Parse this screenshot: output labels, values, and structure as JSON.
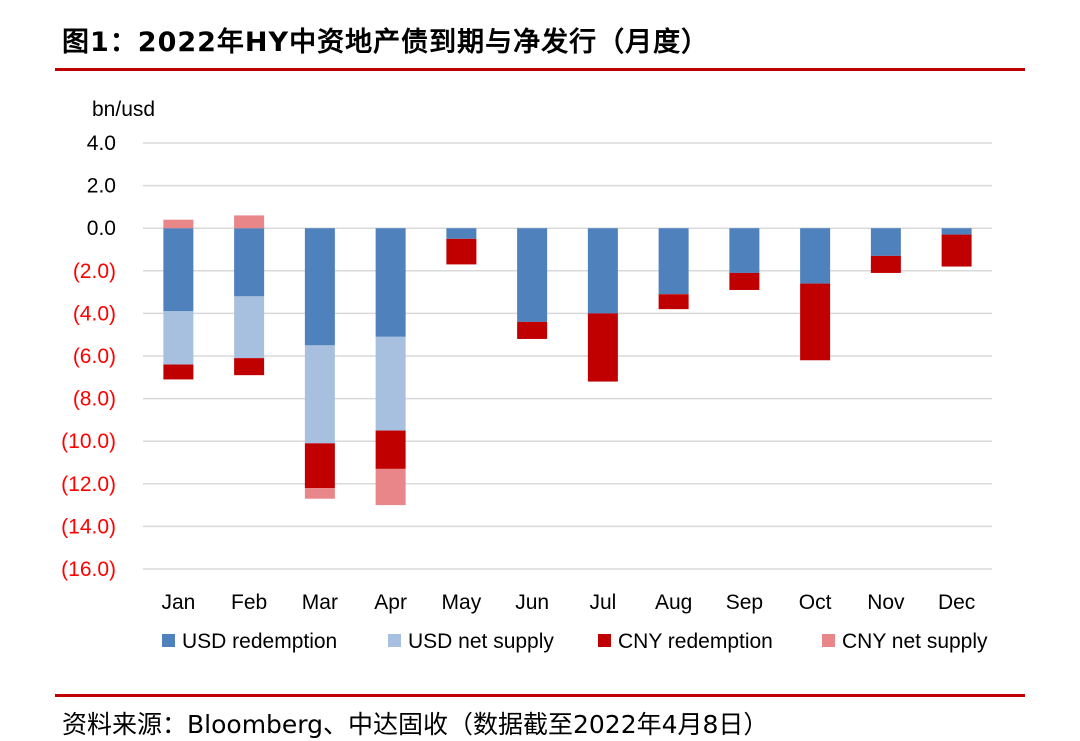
{
  "title": "图1：2022年HY中资地产债到期与净发行（月度）",
  "source": "资料来源：Bloomberg、中达固收（数据截至2022年4月8日）",
  "colors": {
    "usd_redemption": "#4f81bd",
    "usd_net_supply": "#a7c0df",
    "cny_redemption": "#c00000",
    "cny_net_supply": "#e8868a",
    "negative_tick": "#ff0000",
    "positive_tick": "#000000",
    "grid": "#d9d9d9",
    "rule": "#c00000"
  },
  "chart_data": {
    "type": "bar",
    "stacked": true,
    "ylabel": "bn/usd",
    "ylim": [
      -16,
      4
    ],
    "y_ticks": [
      4,
      2,
      0,
      -2,
      -4,
      -6,
      -8,
      -10,
      -12,
      -14,
      -16
    ],
    "y_tick_labels": [
      "4.0",
      "2.0",
      "0.0",
      "(2.0)",
      "(4.0)",
      "(6.0)",
      "(8.0)",
      "(10.0)",
      "(12.0)",
      "(14.0)",
      "(16.0)"
    ],
    "grid": true,
    "legend_position": "bottom",
    "categories": [
      "Jan",
      "Feb",
      "Mar",
      "Apr",
      "May",
      "Jun",
      "Jul",
      "Aug",
      "Sep",
      "Oct",
      "Nov",
      "Dec"
    ],
    "series": [
      {
        "name": "USD redemption",
        "color_key": "usd_redemption",
        "values": [
          -3.9,
          -3.2,
          -5.5,
          -5.1,
          -0.5,
          -4.4,
          -4.0,
          -3.1,
          -2.1,
          -2.6,
          -1.3,
          -0.3
        ]
      },
      {
        "name": "USD net supply",
        "color_key": "usd_net_supply",
        "values": [
          -2.5,
          -2.9,
          -4.6,
          -4.4,
          0,
          0,
          0,
          0,
          0,
          0,
          0,
          0
        ]
      },
      {
        "name": "CNY redemption",
        "color_key": "cny_redemption",
        "values": [
          -0.7,
          -0.8,
          -2.1,
          -1.8,
          -1.2,
          -0.8,
          -3.2,
          -0.7,
          -0.8,
          -3.6,
          -0.8,
          -1.5
        ]
      },
      {
        "name": "CNY net supply",
        "color_key": "cny_net_supply",
        "values": [
          0.4,
          0.6,
          -0.5,
          -1.7,
          0,
          0,
          0,
          0,
          0,
          0,
          0,
          0
        ]
      }
    ]
  }
}
